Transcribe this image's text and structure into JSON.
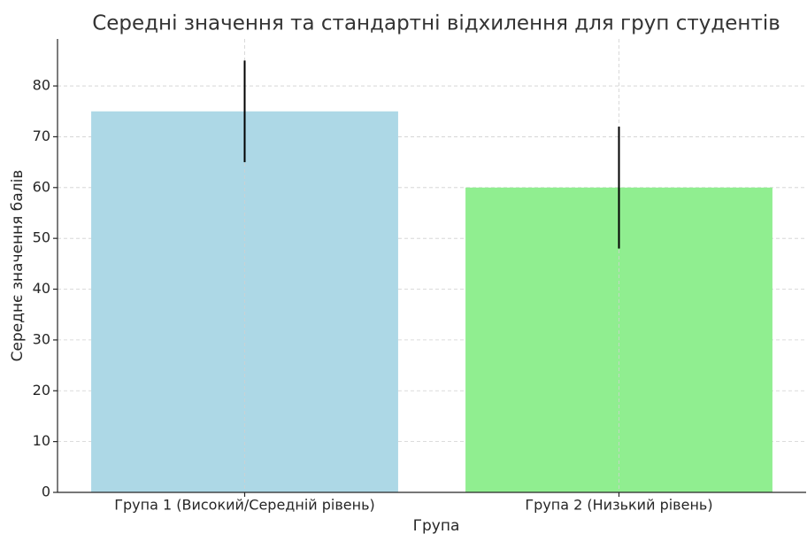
{
  "chart_data": {
    "type": "bar",
    "title": "Середні значення та стандартні відхилення для груп студентів",
    "x_label": "Група",
    "y_label": "Середнє значення балів",
    "categories": [
      "Група 1 (Високий/Середній рівень)",
      "Група 2 (Низький рівень)"
    ],
    "values": [
      75,
      60
    ],
    "errors": [
      10,
      12
    ],
    "colors": [
      "#add8e6",
      "#90ee90"
    ],
    "ylim": [
      0,
      89.25
    ],
    "yticks": [
      0,
      10,
      20,
      30,
      40,
      50,
      60,
      70,
      80
    ],
    "grid": true
  }
}
